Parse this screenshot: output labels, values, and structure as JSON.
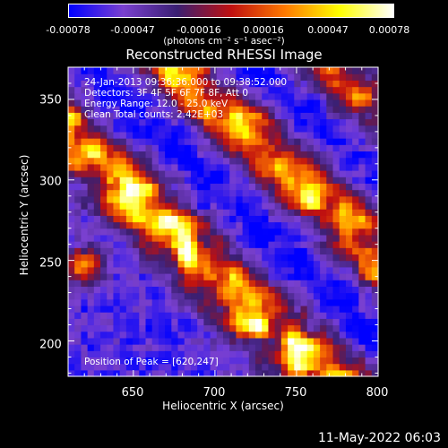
{
  "chart_data": {
    "type": "heatmap",
    "title": "Reconstructed RHESSI Image",
    "xlabel": "Heliocentric X (arcsec)",
    "ylabel": "Heliocentric Y (arcsec)",
    "xlim": [
      610,
      800
    ],
    "ylim": [
      178,
      370
    ],
    "x_ticks": [
      650,
      700,
      750,
      800
    ],
    "y_ticks": [
      200,
      250,
      300,
      350
    ],
    "grid": false,
    "colorbar": {
      "range": [
        -0.00078,
        0.00078
      ],
      "tick_labels": [
        "-0.00078",
        "-0.00047",
        "-0.00016",
        "0.00016",
        "0.00047",
        "0.00078"
      ],
      "units": "(photons cm⁻² s⁻¹ asec⁻²)",
      "colors": [
        "#0000ff",
        "#7a40d0",
        "#3a1f72",
        "#bf1010",
        "#ff7a00",
        "#ffff00",
        "#ffffff"
      ]
    },
    "annotations": [
      "24-Jan-2013 09:36:36.000 to 09:38:52.000",
      "Detectors: 3F 4F 5F 6F 7F 8F, Att 0",
      "Energy Range: 12.0 - 25.0 keV",
      "Clean     Total counts: 2.42E+03"
    ],
    "peak_label": "Position of Peak = [620,247]",
    "peak_position": [
      620,
      247
    ]
  },
  "footer": {
    "timestamp": "11-May-2022 06:03"
  }
}
